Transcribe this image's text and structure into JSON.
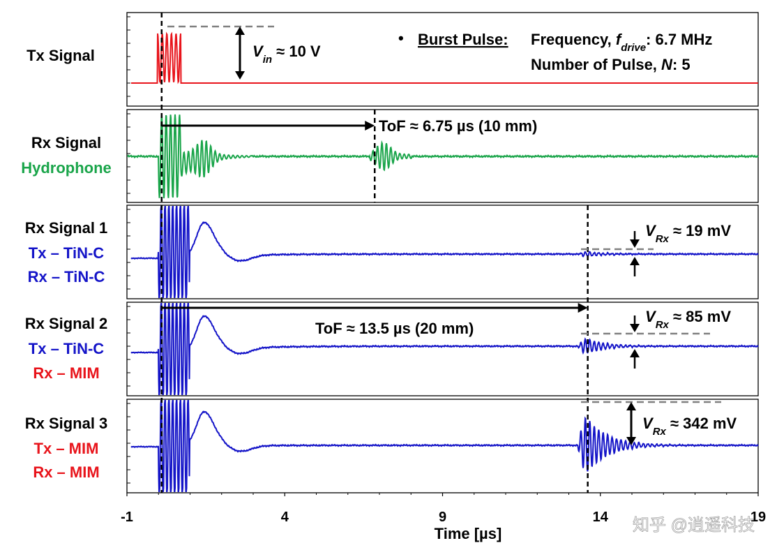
{
  "chart_data": {
    "type": "line",
    "title": "",
    "xlabel": "Time [µs]",
    "ylabel": "",
    "xlim": [
      -1,
      19
    ],
    "xticks": [
      "-1",
      "4",
      "9",
      "14",
      "19"
    ],
    "drive": {
      "bullet": "•",
      "heading": "Burst Pulse:",
      "freq_label": "Frequency, ",
      "freq_symbol": "f",
      "freq_sub": "drive",
      "freq_value": ": 6.7 MHz",
      "pulses_label": "Number of Pulse, ",
      "pulses_symbol": "N",
      "pulses_value": ": 5",
      "frequency_mhz": 6.7,
      "num_pulses": 5
    },
    "panels": [
      {
        "id": "tx",
        "labels": [
          {
            "text": "Tx Signal",
            "color": "#000000"
          }
        ],
        "color": "#e8141b",
        "baseline": 0.0,
        "burst_start_us": 0.1,
        "burst_amplitude": 10.0,
        "annotation": {
          "symbol": "V",
          "sub": "in",
          "text": " ≈ 10 V",
          "value": 10,
          "unit": "V"
        }
      },
      {
        "id": "hydrophone",
        "labels": [
          {
            "text": "Rx Signal",
            "color": "#000000"
          },
          {
            "text": "Hydrophone",
            "color": "#1aa54a"
          }
        ],
        "color": "#1aa54a",
        "annotation": {
          "text": "ToF ≈ 6.75 µs (10 mm)",
          "tof_us": 6.75,
          "distance_mm": 10
        }
      },
      {
        "id": "rx1",
        "labels": [
          {
            "text": "Rx Signal 1",
            "color": "#000000"
          },
          {
            "text": "Tx – TiN-C",
            "color": "#1414c8"
          },
          {
            "text": "Rx – TiN-C",
            "color": "#1414c8"
          }
        ],
        "color": "#1414c8",
        "echo_amplitude_mv": 19,
        "annotation": {
          "symbol": "V",
          "sub": "Rx",
          "text": " ≈ 19 mV",
          "value": 19,
          "unit": "mV"
        }
      },
      {
        "id": "rx2",
        "labels": [
          {
            "text": "Rx Signal 2",
            "color": "#000000"
          },
          {
            "text": "Tx – TiN-C",
            "color": "#1414c8"
          },
          {
            "text": "Rx – MIM",
            "color": "#e8141b"
          }
        ],
        "color": "#1414c8",
        "echo_amplitude_mv": 85,
        "annotation": {
          "symbol": "V",
          "sub": "Rx",
          "text": " ≈ 85 mV",
          "value": 85,
          "unit": "mV"
        },
        "tof": {
          "text": "ToF ≈ 13.5 µs (20 mm)",
          "tof_us": 13.5,
          "distance_mm": 20
        }
      },
      {
        "id": "rx3",
        "labels": [
          {
            "text": "Rx Signal 3",
            "color": "#000000"
          },
          {
            "text": "Tx – MIM",
            "color": "#e8141b"
          },
          {
            "text": "Rx – MIM",
            "color": "#e8141b"
          }
        ],
        "color": "#1414c8",
        "echo_amplitude_mv": 342,
        "annotation": {
          "symbol": "V",
          "sub": "Rx",
          "text": " ≈ 342 mV",
          "value": 342,
          "unit": "mV"
        }
      }
    ],
    "markers_us": [
      0.1,
      6.85,
      13.6
    ]
  },
  "watermark": "知乎 @逍遥科技"
}
